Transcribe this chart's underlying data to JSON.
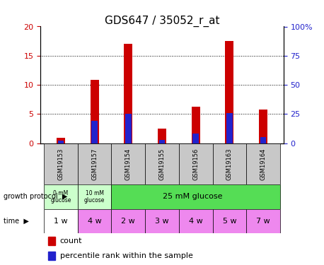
{
  "title": "GDS647 / 35052_r_at",
  "samples": [
    "GSM19153",
    "GSM19157",
    "GSM19154",
    "GSM19155",
    "GSM19156",
    "GSM19163",
    "GSM19164"
  ],
  "count_values": [
    0.9,
    10.8,
    17.0,
    2.5,
    6.2,
    17.5,
    5.8
  ],
  "percentile_values": [
    2,
    19,
    25,
    3,
    8,
    26,
    5
  ],
  "time": [
    "1 w",
    "4 w",
    "2 w",
    "3 w",
    "4 w",
    "5 w",
    "7 w"
  ],
  "ylim_left": [
    0,
    20
  ],
  "ylim_right": [
    0,
    100
  ],
  "yticks_left": [
    0,
    5,
    10,
    15,
    20
  ],
  "yticks_right": [
    0,
    25,
    50,
    75,
    100
  ],
  "bar_color_count": "#cc0000",
  "bar_color_pct": "#2222cc",
  "bar_width": 0.25,
  "pct_bar_width": 0.18,
  "bg_color_sample": "#c8c8c8",
  "bg_color_growth_0mM": "#ccffcc",
  "bg_color_growth_10mM": "#ccffcc",
  "bg_color_growth_25mM": "#55dd55",
  "bg_color_time_1w": "#ffffff",
  "bg_color_time_other": "#ee88ee",
  "title_fontsize": 11,
  "tick_fontsize": 8,
  "label_fontsize": 7.5
}
